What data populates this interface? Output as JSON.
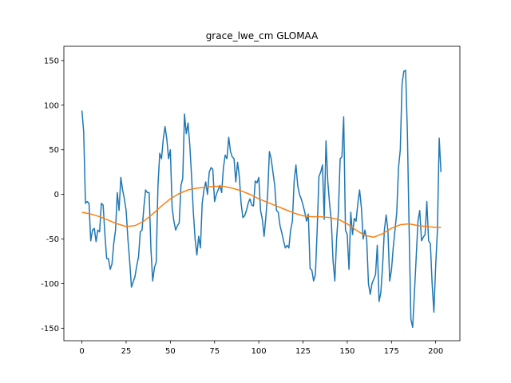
{
  "chart_data": {
    "type": "line",
    "title": "grace_lwe_cm GLOMAA",
    "xlim": [
      -10.2,
      213.7
    ],
    "ylim": [
      -164,
      166
    ],
    "xticks": [
      0,
      25,
      50,
      75,
      100,
      125,
      150,
      175,
      200
    ],
    "yticks": [
      -150,
      -100,
      -50,
      0,
      50,
      100,
      150
    ],
    "series": [
      {
        "color": "#1f77b4",
        "x": [
          0,
          1,
          2,
          3,
          4,
          5,
          6,
          7,
          8,
          9,
          10,
          11,
          12,
          13,
          14,
          15,
          16,
          17,
          18,
          19,
          20,
          21,
          22,
          23,
          24,
          25,
          26,
          27,
          28,
          29,
          30,
          31,
          32,
          33,
          34,
          35,
          36,
          37,
          38,
          39,
          40,
          41,
          42,
          43,
          44,
          45,
          46,
          47,
          48,
          49,
          50,
          51,
          52,
          53,
          54,
          55,
          56,
          57,
          58,
          59,
          60,
          61,
          62,
          63,
          64,
          65,
          66,
          67,
          68,
          69,
          70,
          71,
          72,
          73,
          74,
          75,
          76,
          77,
          78,
          79,
          80,
          81,
          82,
          83,
          84,
          85,
          86,
          87,
          88,
          89,
          90,
          91,
          92,
          93,
          94,
          95,
          96,
          97,
          98,
          99,
          100,
          101,
          102,
          103,
          104,
          105,
          106,
          107,
          108,
          109,
          110,
          111,
          112,
          113,
          114,
          115,
          116,
          117,
          118,
          119,
          120,
          121,
          122,
          123,
          124,
          125,
          126,
          127,
          128,
          129,
          130,
          131,
          132,
          133,
          134,
          135,
          136,
          137,
          138,
          139,
          140,
          141,
          142,
          143,
          144,
          145,
          146,
          147,
          148,
          149,
          150,
          151,
          152,
          153,
          154,
          155,
          156,
          157,
          158,
          159,
          160,
          161,
          162,
          163,
          164,
          165,
          166,
          167,
          168,
          169,
          170,
          171,
          172,
          173,
          174,
          175,
          176,
          177,
          178,
          179,
          180,
          181,
          182,
          183,
          184,
          185,
          186,
          187,
          188,
          189,
          190,
          191,
          192,
          193,
          194,
          195,
          196,
          197,
          198,
          199,
          200,
          201,
          202,
          203
        ],
        "values": [
          94,
          70,
          -10,
          -8,
          -10,
          -52,
          -40,
          -38,
          -53,
          -40,
          -42,
          -10,
          -12,
          -45,
          -72,
          -72,
          -84,
          -78,
          -55,
          -40,
          2,
          -18,
          19,
          5,
          -5,
          -18,
          -50,
          -75,
          -104,
          -98,
          -92,
          -80,
          -70,
          -42,
          -40,
          -15,
          5,
          2,
          2,
          -60,
          -97,
          -82,
          -76,
          10,
          46,
          40,
          62,
          76,
          62,
          40,
          50,
          -15,
          -30,
          -40,
          -35,
          -32,
          10,
          18,
          90,
          68,
          80,
          55,
          20,
          -20,
          -50,
          -68,
          -47,
          -60,
          -10,
          5,
          14,
          0,
          25,
          30,
          28,
          -8,
          0,
          5,
          10,
          2,
          30,
          44,
          40,
          64,
          48,
          42,
          40,
          14,
          36,
          20,
          -10,
          -26,
          -24,
          -18,
          -10,
          -5,
          -12,
          -13,
          15,
          13,
          19,
          -18,
          -28,
          -47,
          -25,
          0,
          48,
          40,
          25,
          10,
          -18,
          -20,
          -35,
          -43,
          -52,
          -60,
          -57,
          -60,
          -40,
          -30,
          15,
          33,
          10,
          0,
          -5,
          -12,
          -20,
          -30,
          -22,
          -83,
          -85,
          -97,
          -90,
          -40,
          20,
          25,
          33,
          -28,
          60,
          15,
          -10,
          -30,
          -75,
          -97,
          -50,
          -20,
          40,
          42,
          87,
          -40,
          -45,
          -84,
          -20,
          -45,
          -27,
          -30,
          -10,
          5,
          -15,
          -50,
          -40,
          -50,
          -100,
          -112,
          -100,
          -95,
          -90,
          -57,
          -120,
          -110,
          -80,
          -40,
          -23,
          -40,
          -97,
          -85,
          -60,
          -40,
          -20,
          30,
          50,
          124,
          138,
          139,
          70,
          -40,
          -140,
          -149,
          -110,
          -70,
          -30,
          -18,
          -52,
          -48,
          -45,
          -8,
          -52,
          -55,
          -100,
          -132,
          -80,
          -40,
          63,
          25
        ]
      },
      {
        "color": "#ff7f0e",
        "x": [
          0,
          5,
          10,
          15,
          20,
          25,
          30,
          35,
          40,
          45,
          50,
          55,
          60,
          65,
          70,
          75,
          80,
          85,
          90,
          95,
          100,
          105,
          110,
          115,
          120,
          125,
          130,
          135,
          140,
          145,
          150,
          155,
          160,
          165,
          170,
          175,
          180,
          185,
          190,
          195,
          200,
          203
        ],
        "values": [
          -20,
          -22,
          -25,
          -29,
          -33,
          -36,
          -35,
          -30,
          -22,
          -13,
          -5,
          1,
          5,
          7,
          8,
          9,
          9,
          7,
          4,
          0,
          -5,
          -9,
          -13,
          -17,
          -21,
          -24,
          -25,
          -25,
          -26,
          -28,
          -33,
          -40,
          -46,
          -48,
          -44,
          -38,
          -34,
          -33,
          -35,
          -36,
          -37,
          -37
        ]
      }
    ]
  }
}
